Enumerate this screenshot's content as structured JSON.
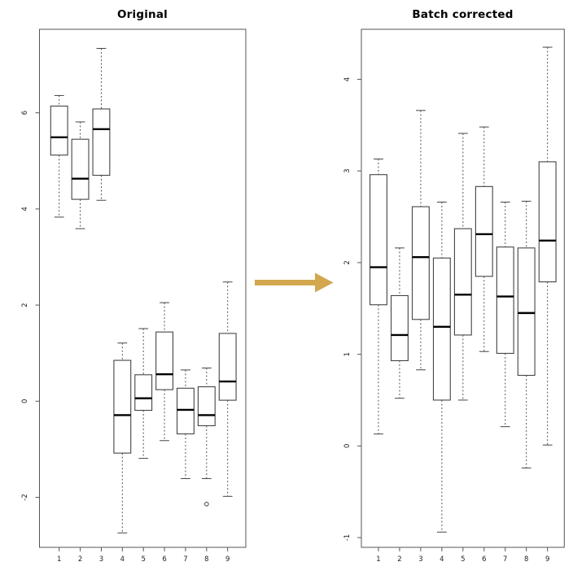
{
  "figure": {
    "kind": "boxplot-comparison",
    "background": "#ffffff",
    "frame_color": "#555555",
    "box_border_color": "#444444",
    "box_fill_color": "#ffffff",
    "median_color": "#000000",
    "whisker_color": "#555555",
    "tick_label_color": "#222222"
  },
  "arrow": {
    "name": "transform-arrow",
    "direction": "right",
    "color": "#d2a74e"
  },
  "chart_data": [
    {
      "type": "boxplot",
      "title": "Original",
      "xlabel": "",
      "ylabel": "",
      "categories": [
        "1",
        "2",
        "3",
        "4",
        "5",
        "6",
        "7",
        "8",
        "9"
      ],
      "yticks": [
        -2,
        0,
        2,
        4,
        6
      ],
      "ylim": [
        -3.0,
        7.7
      ],
      "grid": false,
      "boxes": [
        {
          "whislo": 3.83,
          "q1": 5.12,
          "med": 5.49,
          "q3": 6.14,
          "whishi": 6.36,
          "outliers": []
        },
        {
          "whislo": 3.59,
          "q1": 4.2,
          "med": 4.63,
          "q3": 5.45,
          "whishi": 5.81,
          "outliers": []
        },
        {
          "whislo": 4.18,
          "q1": 4.7,
          "med": 5.66,
          "q3": 6.08,
          "whishi": 7.34,
          "outliers": []
        },
        {
          "whislo": -2.74,
          "q1": -1.08,
          "med": -0.29,
          "q3": 0.85,
          "whishi": 1.21,
          "outliers": []
        },
        {
          "whislo": -1.19,
          "q1": -0.19,
          "med": 0.06,
          "q3": 0.55,
          "whishi": 1.51,
          "outliers": []
        },
        {
          "whislo": -0.82,
          "q1": 0.24,
          "med": 0.56,
          "q3": 1.44,
          "whishi": 2.05,
          "outliers": []
        },
        {
          "whislo": -1.61,
          "q1": -0.68,
          "med": -0.18,
          "q3": 0.27,
          "whishi": 0.65,
          "outliers": []
        },
        {
          "whislo": -1.61,
          "q1": -0.51,
          "med": -0.29,
          "q3": 0.3,
          "whishi": 0.69,
          "outliers": [
            -2.14
          ]
        },
        {
          "whislo": -1.98,
          "q1": 0.02,
          "med": 0.41,
          "q3": 1.41,
          "whishi": 2.48,
          "outliers": []
        }
      ]
    },
    {
      "type": "boxplot",
      "title": "Batch corrected",
      "xlabel": "",
      "ylabel": "",
      "categories": [
        "1",
        "2",
        "3",
        "4",
        "5",
        "6",
        "7",
        "8",
        "9"
      ],
      "yticks": [
        -1,
        0,
        1,
        2,
        3,
        4
      ],
      "ylim": [
        -1.15,
        4.55
      ],
      "grid": false,
      "boxes": [
        {
          "whislo": 0.13,
          "q1": 1.54,
          "med": 1.95,
          "q3": 2.96,
          "whishi": 3.13,
          "outliers": []
        },
        {
          "whislo": 0.52,
          "q1": 0.93,
          "med": 1.21,
          "q3": 1.64,
          "whishi": 2.16,
          "outliers": []
        },
        {
          "whislo": 0.83,
          "q1": 1.38,
          "med": 2.06,
          "q3": 2.61,
          "whishi": 3.66,
          "outliers": []
        },
        {
          "whislo": -0.94,
          "q1": 0.5,
          "med": 1.3,
          "q3": 2.05,
          "whishi": 2.66,
          "outliers": []
        },
        {
          "whislo": 0.5,
          "q1": 1.21,
          "med": 1.65,
          "q3": 2.37,
          "whishi": 3.41,
          "outliers": []
        },
        {
          "whislo": 1.03,
          "q1": 1.85,
          "med": 2.31,
          "q3": 2.83,
          "whishi": 3.48,
          "outliers": []
        },
        {
          "whislo": 0.21,
          "q1": 1.01,
          "med": 1.63,
          "q3": 2.17,
          "whishi": 2.66,
          "outliers": []
        },
        {
          "whislo": -0.24,
          "q1": 0.77,
          "med": 1.45,
          "q3": 2.16,
          "whishi": 2.67,
          "outliers": []
        },
        {
          "whislo": 0.01,
          "q1": 1.79,
          "med": 2.24,
          "q3": 3.1,
          "whishi": 4.35,
          "outliers": []
        }
      ]
    }
  ]
}
